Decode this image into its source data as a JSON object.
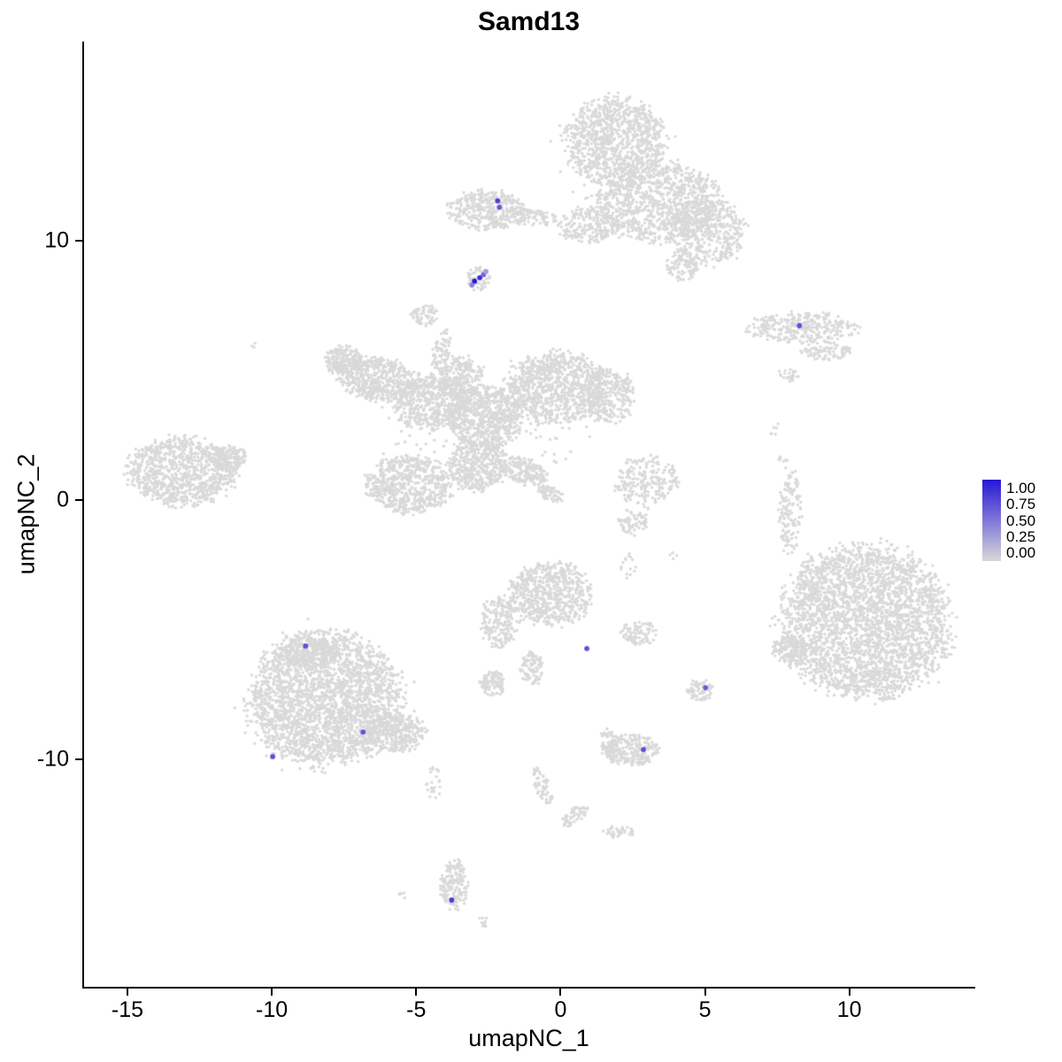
{
  "title": "Samd13",
  "axes": {
    "x_label": "umapNC_1",
    "y_label": "umapNC_2",
    "x_ticks": [
      "-15",
      "-10",
      "-5",
      "0",
      "5",
      "10"
    ],
    "y_ticks": [
      "10",
      "0",
      "-10"
    ]
  },
  "legend": {
    "labels": [
      "1.00",
      "0.75",
      "0.50",
      "0.25",
      "0.00"
    ]
  },
  "chart_data": {
    "type": "scatter",
    "title": "Samd13",
    "xlabel": "umapNC_1",
    "ylabel": "umapNC_2",
    "xlim": [
      -16.5,
      14.3
    ],
    "ylim": [
      -18.8,
      17.7
    ],
    "x_tick_values": [
      -15,
      -10,
      -5,
      0,
      5,
      10
    ],
    "y_tick_values": [
      10,
      0,
      -10
    ],
    "grid": false,
    "legend_position": "right",
    "legend_range": [
      0.0,
      1.0
    ],
    "point_color_low": "#D9D9D9",
    "point_color_high": "#2716D6",
    "clusters": [
      {
        "cx": 1.9,
        "cy": 13.85,
        "rx": 1.7,
        "ry": 1.7,
        "n": 1000
      },
      {
        "cx": 3.45,
        "cy": 11.5,
        "rx": 2.15,
        "ry": 1.55,
        "n": 1000
      },
      {
        "cx": 5.1,
        "cy": 10.35,
        "rx": 1.3,
        "ry": 1.3,
        "n": 450
      },
      {
        "cx": 0.95,
        "cy": 10.6,
        "rx": 1.05,
        "ry": 0.7,
        "n": 200
      },
      {
        "cx": 4.2,
        "cy": 9.05,
        "rx": 0.6,
        "ry": 0.6,
        "n": 100
      },
      {
        "cx": 2.0,
        "cy": 13.0,
        "rx": 2.3,
        "ry": 2.3,
        "n": 60
      },
      {
        "cx": -2.55,
        "cy": 11.2,
        "rx": 1.3,
        "ry": 0.75,
        "n": 380
      },
      {
        "cx": -0.9,
        "cy": 10.9,
        "rx": 0.75,
        "ry": 0.35,
        "n": 80
      },
      {
        "cx": -2.85,
        "cy": 8.55,
        "rx": 0.38,
        "ry": 0.48,
        "n": 60
      },
      {
        "cx": -4.7,
        "cy": 7.15,
        "rx": 0.5,
        "ry": 0.4,
        "n": 60
      },
      {
        "cx": -4.1,
        "cy": 5.8,
        "rx": 0.3,
        "ry": 0.85,
        "n": 70,
        "angle": -15
      },
      {
        "cx": 8.35,
        "cy": 6.65,
        "rx": 1.9,
        "ry": 0.58,
        "n": 320
      },
      {
        "cx": 9.25,
        "cy": 5.75,
        "rx": 0.9,
        "ry": 0.35,
        "n": 90
      },
      {
        "cx": 7.85,
        "cy": 4.8,
        "rx": 0.38,
        "ry": 0.27,
        "n": 25
      },
      {
        "cx": 7.5,
        "cy": 2.65,
        "rx": 0.2,
        "ry": 0.3,
        "n": 6
      },
      {
        "cx": -7.5,
        "cy": 5.4,
        "rx": 0.67,
        "ry": 0.55,
        "n": 180
      },
      {
        "cx": -6.4,
        "cy": 4.7,
        "rx": 1.4,
        "ry": 0.85,
        "n": 550,
        "angle": -15
      },
      {
        "cx": -4.55,
        "cy": 3.75,
        "rx": 1.25,
        "ry": 1.05,
        "n": 550
      },
      {
        "cx": -3.45,
        "cy": 4.7,
        "rx": 0.78,
        "ry": 0.85,
        "n": 250
      },
      {
        "cx": -2.6,
        "cy": 3.15,
        "rx": 1.25,
        "ry": 1.2,
        "n": 700
      },
      {
        "cx": -0.15,
        "cy": 4.35,
        "rx": 1.7,
        "ry": 1.35,
        "n": 900
      },
      {
        "cx": 1.65,
        "cy": 4.0,
        "rx": 0.92,
        "ry": 1.05,
        "n": 300
      },
      {
        "cx": -5.25,
        "cy": 0.6,
        "rx": 1.47,
        "ry": 1.1,
        "n": 650
      },
      {
        "cx": -2.85,
        "cy": 1.35,
        "rx": 1.07,
        "ry": 0.95,
        "n": 420
      },
      {
        "cx": -1.25,
        "cy": 1.1,
        "rx": 0.85,
        "ry": 0.5,
        "n": 180,
        "angle": -30
      },
      {
        "cx": -0.35,
        "cy": 0.25,
        "rx": 0.46,
        "ry": 0.27,
        "n": 60,
        "angle": -30
      },
      {
        "cx": -2.6,
        "cy": 3.0,
        "rx": 3.6,
        "ry": 2.6,
        "n": 130
      },
      {
        "cx": -10.6,
        "cy": 6.0,
        "rx": 0.12,
        "ry": 0.12,
        "n": 3
      },
      {
        "cx": -13.15,
        "cy": 1.1,
        "rx": 1.85,
        "ry": 1.3,
        "n": 900
      },
      {
        "cx": -11.5,
        "cy": 1.6,
        "rx": 0.62,
        "ry": 0.48,
        "n": 150
      },
      {
        "cx": 2.95,
        "cy": 0.7,
        "rx": 1.07,
        "ry": 0.96,
        "n": 220
      },
      {
        "cx": 2.5,
        "cy": -0.85,
        "rx": 0.55,
        "ry": 0.51,
        "n": 70
      },
      {
        "cx": 7.95,
        "cy": -0.45,
        "rx": 0.38,
        "ry": 1.65,
        "n": 140
      },
      {
        "cx": 7.75,
        "cy": 1.65,
        "rx": 0.2,
        "ry": 0.3,
        "n": 8
      },
      {
        "cx": 3.9,
        "cy": -2.15,
        "rx": 0.15,
        "ry": 0.15,
        "n": 4
      },
      {
        "cx": 8.55,
        "cy": -2.75,
        "rx": 0.3,
        "ry": 0.75,
        "n": 20
      },
      {
        "cx": 10.55,
        "cy": -4.7,
        "rx": 2.9,
        "ry": 2.9,
        "n": 3000
      },
      {
        "cx": 7.95,
        "cy": -5.75,
        "rx": 0.62,
        "ry": 0.51,
        "n": 150
      },
      {
        "cx": 10.55,
        "cy": -4.7,
        "rx": 3.3,
        "ry": 3.25,
        "n": 80
      },
      {
        "cx": -0.35,
        "cy": -3.65,
        "rx": 1.4,
        "ry": 1.2,
        "n": 650
      },
      {
        "cx": -2.1,
        "cy": -4.7,
        "rx": 0.67,
        "ry": 0.96,
        "n": 200
      },
      {
        "cx": -1.0,
        "cy": -6.5,
        "rx": 0.38,
        "ry": 0.68,
        "n": 90
      },
      {
        "cx": -2.35,
        "cy": -7.1,
        "rx": 0.5,
        "ry": 0.48,
        "n": 100
      },
      {
        "cx": 2.7,
        "cy": -5.15,
        "rx": 0.67,
        "ry": 0.44,
        "n": 90
      },
      {
        "cx": 2.4,
        "cy": -2.6,
        "rx": 0.3,
        "ry": 0.5,
        "n": 15
      },
      {
        "cx": -8.15,
        "cy": -7.7,
        "rx": 2.6,
        "ry": 2.55,
        "n": 2600
      },
      {
        "cx": -5.75,
        "cy": -9.0,
        "rx": 1.07,
        "ry": 0.75,
        "n": 350
      },
      {
        "cx": -8.7,
        "cy": -5.8,
        "rx": 0.92,
        "ry": 0.62,
        "n": 250
      },
      {
        "cx": -8.15,
        "cy": -7.7,
        "rx": 3.1,
        "ry": 2.9,
        "n": 100
      },
      {
        "cx": -4.4,
        "cy": -10.95,
        "rx": 0.25,
        "ry": 0.62,
        "n": 25
      },
      {
        "cx": 4.85,
        "cy": -7.35,
        "rx": 0.44,
        "ry": 0.44,
        "n": 70
      },
      {
        "cx": 2.45,
        "cy": -9.65,
        "rx": 0.98,
        "ry": 0.62,
        "n": 260
      },
      {
        "cx": 1.65,
        "cy": -9.35,
        "rx": 0.31,
        "ry": 0.48,
        "n": 60
      },
      {
        "cx": -0.65,
        "cy": -11.05,
        "rx": 0.25,
        "ry": 0.75,
        "n": 60,
        "angle": 20
      },
      {
        "cx": 0.5,
        "cy": -12.2,
        "rx": 0.55,
        "ry": 0.27,
        "n": 50,
        "angle": 40
      },
      {
        "cx": 2.05,
        "cy": -12.8,
        "rx": 0.55,
        "ry": 0.24,
        "n": 40
      },
      {
        "cx": -3.7,
        "cy": -14.85,
        "rx": 0.5,
        "ry": 0.95,
        "n": 160
      },
      {
        "cx": -2.7,
        "cy": -16.3,
        "rx": 0.2,
        "ry": 0.2,
        "n": 10
      },
      {
        "cx": -5.45,
        "cy": -15.3,
        "rx": 0.25,
        "ry": 0.15,
        "n": 6
      }
    ],
    "expressing_points": [
      {
        "x": -2.18,
        "y": 11.55,
        "value": 0.8
      },
      {
        "x": -2.12,
        "y": 11.3,
        "value": 0.65
      },
      {
        "x": -2.98,
        "y": 8.45,
        "value": 1.0
      },
      {
        "x": -2.8,
        "y": 8.58,
        "value": 0.9
      },
      {
        "x": -2.67,
        "y": 8.7,
        "value": 0.6
      },
      {
        "x": -3.07,
        "y": 8.3,
        "value": 0.45
      },
      {
        "x": -2.58,
        "y": 8.82,
        "value": 0.3
      },
      {
        "x": 8.27,
        "y": 6.73,
        "value": 0.7
      },
      {
        "x": -8.83,
        "y": -5.64,
        "value": 0.7
      },
      {
        "x": -6.84,
        "y": -8.96,
        "value": 0.7
      },
      {
        "x": -9.97,
        "y": -9.91,
        "value": 0.7
      },
      {
        "x": 0.91,
        "y": -5.74,
        "value": 0.7
      },
      {
        "x": 5.02,
        "y": -7.25,
        "value": 0.65
      },
      {
        "x": 2.87,
        "y": -9.64,
        "value": 0.7
      },
      {
        "x": -3.77,
        "y": -15.45,
        "value": 0.8
      }
    ]
  }
}
